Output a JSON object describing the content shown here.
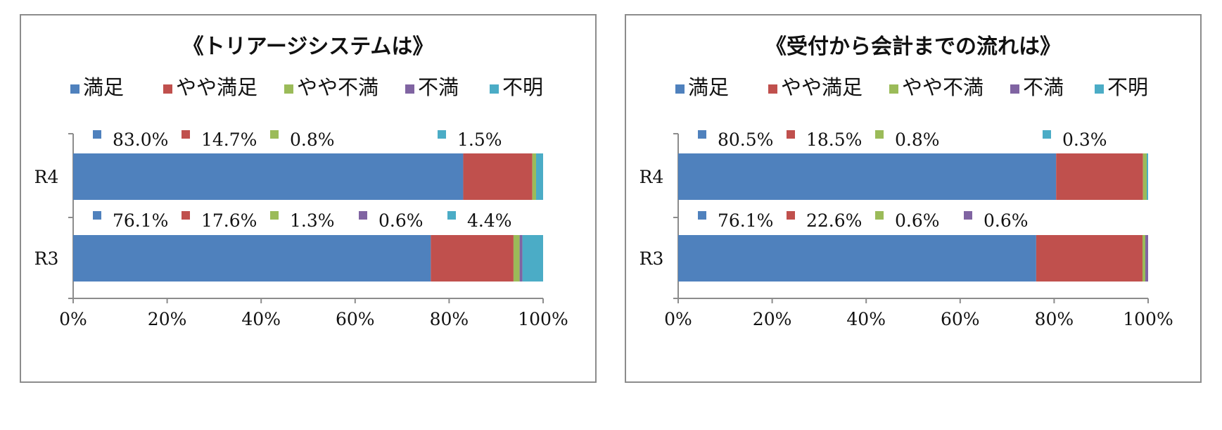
{
  "chart_data": [
    {
      "type": "bar",
      "orientation": "horizontal",
      "stacked": "percent",
      "title": "《トリアージシステムは》",
      "categories": [
        "R4",
        "R3"
      ],
      "series": [
        {
          "name": "満足",
          "color": "#4f81bd",
          "values": [
            83.0,
            76.1
          ],
          "labels": [
            "83.0%",
            "76.1%"
          ]
        },
        {
          "name": "やや満足",
          "color": "#c0504d",
          "values": [
            14.7,
            17.6
          ],
          "labels": [
            "14.7%",
            "17.6%"
          ]
        },
        {
          "name": "やや不満",
          "color": "#9bbb59",
          "values": [
            0.8,
            1.3
          ],
          "labels": [
            "0.8%",
            "1.3%"
          ]
        },
        {
          "name": "不満",
          "color": "#8064a2",
          "values": [
            0.0,
            0.6
          ],
          "labels": [
            null,
            "0.6%"
          ]
        },
        {
          "name": "不明",
          "color": "#4bacc6",
          "values": [
            1.5,
            4.4
          ],
          "labels": [
            "1.5%",
            "4.4%"
          ]
        }
      ],
      "xlim": [
        0,
        100
      ],
      "xticks": [
        "0%",
        "20%",
        "40%",
        "60%",
        "80%",
        "100%"
      ],
      "legend_position": "top",
      "grid": false
    },
    {
      "type": "bar",
      "orientation": "horizontal",
      "stacked": "percent",
      "title": "《受付から会計までの流れは》",
      "categories": [
        "R4",
        "R3"
      ],
      "series": [
        {
          "name": "満足",
          "color": "#4f81bd",
          "values": [
            80.5,
            76.1
          ],
          "labels": [
            "80.5%",
            "76.1%"
          ]
        },
        {
          "name": "やや満足",
          "color": "#c0504d",
          "values": [
            18.5,
            22.6
          ],
          "labels": [
            "18.5%",
            "22.6%"
          ]
        },
        {
          "name": "やや不満",
          "color": "#9bbb59",
          "values": [
            0.8,
            0.6
          ],
          "labels": [
            "0.8%",
            "0.6%"
          ]
        },
        {
          "name": "不満",
          "color": "#8064a2",
          "values": [
            0.0,
            0.6
          ],
          "labels": [
            null,
            "0.6%"
          ]
        },
        {
          "name": "不明",
          "color": "#4bacc6",
          "values": [
            0.3,
            0.0
          ],
          "labels": [
            "0.3%",
            null
          ]
        }
      ],
      "xlim": [
        0,
        100
      ],
      "xticks": [
        "0%",
        "20%",
        "40%",
        "60%",
        "80%",
        "100%"
      ],
      "legend_position": "top",
      "grid": false
    }
  ]
}
